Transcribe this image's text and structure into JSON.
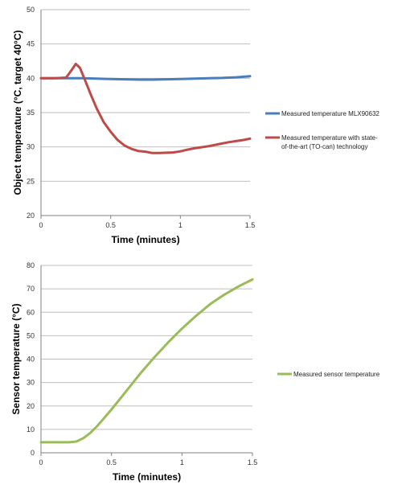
{
  "chart_data": [
    {
      "type": "line",
      "title": "",
      "xlabel": "Time (minutes)",
      "ylabel": "Object temperature (°C, target 40°C)",
      "xlim": [
        0,
        1.5
      ],
      "ylim": [
        20,
        50
      ],
      "xticks": [
        0,
        0.5,
        1,
        1.5
      ],
      "xtick_labels": [
        "0",
        "0.5",
        "1",
        "1.5"
      ],
      "yticks": [
        20,
        25,
        30,
        35,
        40,
        45,
        50
      ],
      "ytick_labels": [
        "20",
        "25",
        "30",
        "35",
        "40",
        "45",
        "50"
      ],
      "grid": "horizontal",
      "legend_position": "right",
      "series": [
        {
          "name": "Measured temperature MLX90632",
          "color": "#4A7EBB",
          "legend_lines": [
            "Measured temperature MLX90632"
          ],
          "x": [
            0,
            0.1,
            0.2,
            0.3,
            0.4,
            0.5,
            0.6,
            0.7,
            0.8,
            0.9,
            1.0,
            1.1,
            1.2,
            1.3,
            1.4,
            1.5
          ],
          "y": [
            40.0,
            40.0,
            40.0,
            40.0,
            39.95,
            39.9,
            39.85,
            39.8,
            39.8,
            39.85,
            39.9,
            39.95,
            40.0,
            40.05,
            40.15,
            40.3
          ]
        },
        {
          "name": "Measured temperature with state-of-the-art (TO-can) technology",
          "color": "#BE4B48",
          "legend_lines": [
            "Measured temperature with state-",
            "of-the-art (TO-can) technology"
          ],
          "x": [
            0,
            0.1,
            0.18,
            0.22,
            0.25,
            0.28,
            0.32,
            0.36,
            0.4,
            0.45,
            0.5,
            0.55,
            0.6,
            0.65,
            0.7,
            0.75,
            0.8,
            0.85,
            0.9,
            0.95,
            1.0,
            1.05,
            1.1,
            1.15,
            1.2,
            1.25,
            1.3,
            1.35,
            1.4,
            1.45,
            1.5
          ],
          "y": [
            40.0,
            40.0,
            40.1,
            41.2,
            42.1,
            41.5,
            39.5,
            37.5,
            35.6,
            33.6,
            32.2,
            31.0,
            30.2,
            29.7,
            29.4,
            29.3,
            29.1,
            29.1,
            29.15,
            29.2,
            29.35,
            29.6,
            29.8,
            29.95,
            30.1,
            30.3,
            30.5,
            30.7,
            30.85,
            31.0,
            31.2
          ]
        }
      ]
    },
    {
      "type": "line",
      "title": "",
      "xlabel": "Time (minutes)",
      "ylabel": "Sensor temperature (°C)",
      "xlim": [
        0,
        1.5
      ],
      "ylim": [
        0,
        80
      ],
      "xticks": [
        0,
        0.5,
        1,
        1.5
      ],
      "xtick_labels": [
        "0",
        "0.5",
        "1",
        "1.5"
      ],
      "yticks": [
        0,
        10,
        20,
        30,
        40,
        50,
        60,
        70,
        80
      ],
      "ytick_labels": [
        "0",
        "10",
        "20",
        "30",
        "40",
        "50",
        "60",
        "70",
        "80"
      ],
      "grid": "horizontal",
      "legend_position": "right",
      "series": [
        {
          "name": "Measured sensor temperature",
          "color": "#9BBB59",
          "legend_lines": [
            "Measured sensor temperature"
          ],
          "x": [
            0,
            0.1,
            0.2,
            0.25,
            0.3,
            0.35,
            0.4,
            0.45,
            0.5,
            0.6,
            0.7,
            0.8,
            0.9,
            1.0,
            1.1,
            1.2,
            1.3,
            1.4,
            1.5
          ],
          "y": [
            4.5,
            4.5,
            4.5,
            4.8,
            6.2,
            8.5,
            11.5,
            15.0,
            18.5,
            26.0,
            33.5,
            40.5,
            47.0,
            53.0,
            58.5,
            63.5,
            67.5,
            71.0,
            74.0
          ]
        }
      ]
    }
  ]
}
